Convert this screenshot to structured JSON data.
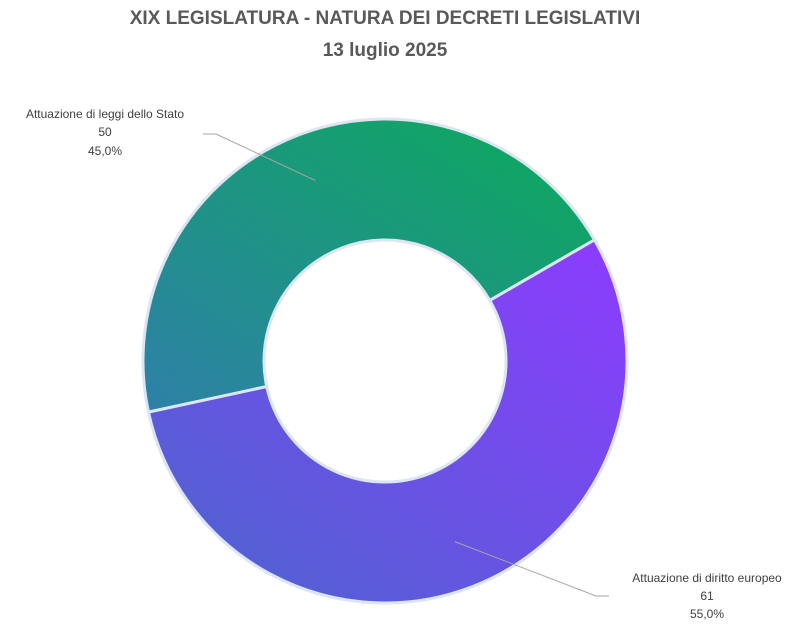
{
  "chart_data": {
    "type": "pie",
    "title": "XIX LEGISLATURA - NATURA DEI DECRETI LEGISLATIVI",
    "subtitle": "13 luglio 2025",
    "slices": [
      {
        "label": "Attuazione di leggi dello Stato",
        "value": 50,
        "percent": "45,0%"
      },
      {
        "label": "Attuazione di diritto europeo",
        "value": 61,
        "percent": "55,0%"
      }
    ],
    "colors": {
      "slice_0_a": "#0bab5a",
      "slice_0_b": "#2e80a8",
      "slice_1_a": "#8e3bff",
      "slice_1_b": "#4a66cc",
      "border": "#dce6f2",
      "leader": "#a6a6a6"
    }
  }
}
